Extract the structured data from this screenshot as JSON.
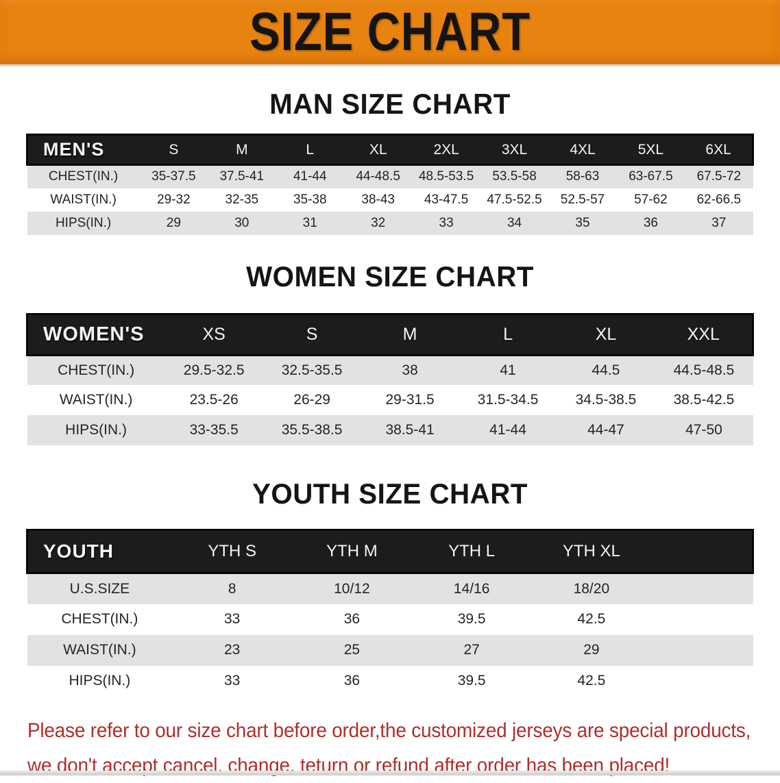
{
  "banner": {
    "title": "SIZE CHART",
    "bg_color": "#E8830F",
    "text_color": "#141414"
  },
  "sections": [
    {
      "id": "men",
      "heading": "MAN SIZE CHART",
      "table": {
        "corner_label": "MEN'S",
        "columns": [
          "S",
          "M",
          "L",
          "XL",
          "2XL",
          "3XL",
          "4XL",
          "5XL",
          "6XL"
        ],
        "rows": [
          {
            "label": "CHEST(IN.)",
            "values": [
              "35-37.5",
              "37.5-41",
              "41-44",
              "44-48.5",
              "48.5-53.5",
              "53.5-58",
              "58-63",
              "63-67.5",
              "67.5-72"
            ]
          },
          {
            "label": "WAIST(IN.)",
            "values": [
              "29-32",
              "32-35",
              "35-38",
              "38-43",
              "43-47.5",
              "47.5-52.5",
              "52.5-57",
              "57-62",
              "62-66.5"
            ]
          },
          {
            "label": "HIPS(IN.)",
            "values": [
              "29",
              "30",
              "31",
              "32",
              "33",
              "34",
              "35",
              "36",
              "37"
            ]
          }
        ]
      }
    },
    {
      "id": "women",
      "heading": "WOMEN SIZE CHART",
      "table": {
        "corner_label": "WOMEN'S",
        "columns": [
          "XS",
          "S",
          "M",
          "L",
          "XL",
          "XXL"
        ],
        "rows": [
          {
            "label": "CHEST(IN.)",
            "values": [
              "29.5-32.5",
              "32.5-35.5",
              "38",
              "41",
              "44.5",
              "44.5-48.5"
            ]
          },
          {
            "label": "WAIST(IN.)",
            "values": [
              "23.5-26",
              "26-29",
              "29-31.5",
              "31.5-34.5",
              "34.5-38.5",
              "38.5-42.5"
            ]
          },
          {
            "label": "HIPS(IN.)",
            "values": [
              "33-35.5",
              "35.5-38.5",
              "38.5-41",
              "41-44",
              "44-47",
              "47-50"
            ]
          }
        ]
      }
    },
    {
      "id": "youth",
      "heading": "YOUTH SIZE CHART",
      "table": {
        "corner_label": "YOUTH",
        "columns": [
          "YTH S",
          "YTH M",
          "YTH L",
          "YTH XL"
        ],
        "rows": [
          {
            "label": "U.S.SIZE",
            "values": [
              "8",
              "10/12",
              "14/16",
              "18/20"
            ]
          },
          {
            "label": "CHEST(IN.)",
            "values": [
              "33",
              "36",
              "39.5",
              "42.5"
            ]
          },
          {
            "label": "WAIST(IN.)",
            "values": [
              "23",
              "25",
              "27",
              "29"
            ]
          },
          {
            "label": "HIPS(IN.)",
            "values": [
              "33",
              "36",
              "39.5",
              "42.5"
            ]
          }
        ]
      }
    }
  ],
  "footer": {
    "line1": "Please refer to our size chart before order,the customized jerseys are special products,",
    "line2": "we don't accept cancel, change, teturn or refund after order has been placed!",
    "text_color": "#AE2F2B"
  }
}
